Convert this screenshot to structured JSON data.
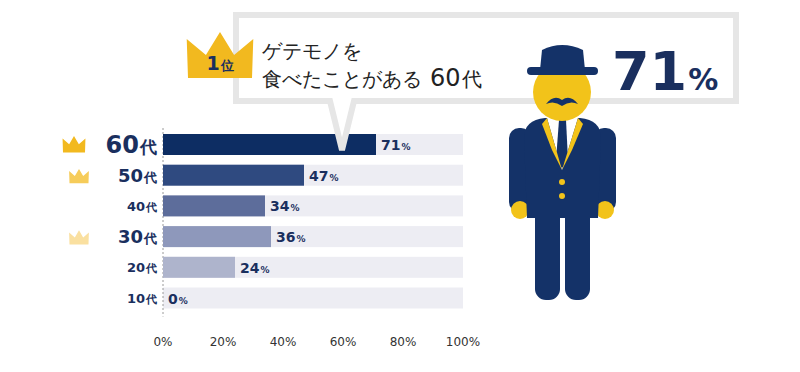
{
  "chart_data": {
    "type": "bar",
    "orientation": "horizontal",
    "categories": [
      "60代",
      "50代",
      "40代",
      "30代",
      "20代",
      "10代"
    ],
    "values": [
      71,
      47,
      34,
      36,
      24,
      0
    ],
    "value_labels": [
      "71%",
      "47%",
      "34%",
      "36%",
      "24%",
      "0%"
    ],
    "colors": [
      "#0d2d63",
      "#2f4a80",
      "#5d6d9b",
      "#8e98bb",
      "#aeb4cc",
      "#aeb4cc"
    ],
    "data_labels": true,
    "grid": false,
    "xlim": [
      0,
      100
    ],
    "xticks": [
      {
        "value": 0,
        "label": "0%"
      },
      {
        "value": 20,
        "label": "20%"
      },
      {
        "value": 40,
        "label": "40%"
      },
      {
        "value": 60,
        "label": "60%"
      },
      {
        "value": 80,
        "label": "80%"
      },
      {
        "value": 100,
        "label": "100%"
      }
    ],
    "annotations": [
      {
        "rank": "1位",
        "text": [
          "ゲテモノを",
          "食べたことがある"
        ],
        "category": "60代",
        "value_label": "71%"
      }
    ]
  }
}
